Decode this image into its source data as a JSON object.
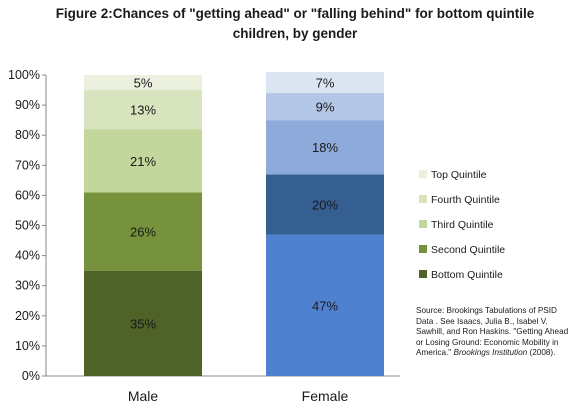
{
  "title": "Figure 2:Chances of \"getting ahead\" or \"falling behind\" for bottom quintile children, by gender",
  "source": {
    "text": "Source:  Brookings Tabulations of PSID Data . See Isaacs, Julia B., Isabel V. Sawhill, and Ron Haskins. \"Getting Ahead or Losing Ground: Economic Mobility in America.\" ",
    "publication": "Brookings Institution",
    "year": " (2008)."
  },
  "chart_data": {
    "type": "bar",
    "stacked": true,
    "categories": [
      "Male",
      "Female"
    ],
    "ylim": [
      0,
      100
    ],
    "yticks": [
      "0%",
      "10%",
      "20%",
      "30%",
      "40%",
      "50%",
      "60%",
      "70%",
      "80%",
      "90%",
      "100%"
    ],
    "legend_position": "right",
    "series": [
      {
        "name": "Bottom Quintile",
        "values": [
          35,
          47
        ],
        "labels": [
          "35%",
          "47%"
        ],
        "colors": [
          "#4f6228",
          "#4f81d0"
        ]
      },
      {
        "name": "Second Quintile",
        "values": [
          26,
          20
        ],
        "labels": [
          "26%",
          "20%"
        ],
        "colors": [
          "#76923c",
          "#365f91"
        ]
      },
      {
        "name": "Third Quintile",
        "values": [
          21,
          18
        ],
        "labels": [
          "21%",
          "18%"
        ],
        "colors": [
          "#c3d69b",
          "#8eaadb"
        ]
      },
      {
        "name": "Fourth Quintile",
        "values": [
          13,
          9
        ],
        "labels": [
          "13%",
          "9%"
        ],
        "colors": [
          "#d7e4bd",
          "#b4c6e7"
        ]
      },
      {
        "name": "Top Quintile",
        "values": [
          5,
          7
        ],
        "labels": [
          "5%",
          "7%"
        ],
        "colors": [
          "#ebf1de",
          "#dbe5f1"
        ]
      }
    ],
    "legend_colors": [
      "#4f6228",
      "#76923c",
      "#c3d69b",
      "#d7e4bd",
      "#ebf1de"
    ]
  }
}
